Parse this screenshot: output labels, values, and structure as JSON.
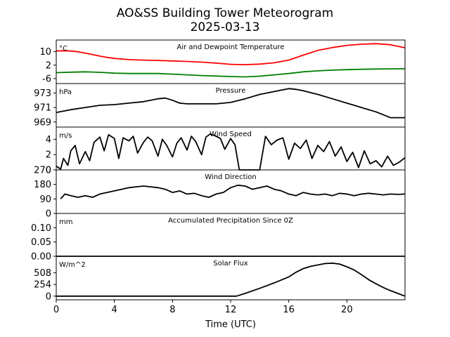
{
  "figure": {
    "title_line1": "AO&SS Building Tower Meteorogram",
    "title_line2": "2025-03-13",
    "xlabel": "Time (UTC)",
    "x_range": [
      0,
      24
    ],
    "x_ticks": [
      0,
      4,
      8,
      12,
      16,
      20
    ]
  },
  "chart_data": [
    {
      "type": "line",
      "title": "Air and Dewpoint Temperature",
      "unit": "°C",
      "ylim": [
        -9,
        17
      ],
      "yticks": [
        -6,
        2,
        10
      ],
      "series": [
        {
          "name": "",
          "color": "#ff0000",
          "x": [
            0,
            0.5,
            1,
            1.5,
            2,
            2.5,
            3,
            3.5,
            4,
            5,
            6,
            7,
            8,
            9,
            10,
            11,
            12,
            13,
            14,
            15,
            16,
            17,
            18,
            19,
            20,
            21,
            22,
            23,
            24
          ],
          "values": [
            10.5,
            10.6,
            10.4,
            10.0,
            9.2,
            8.3,
            7.4,
            6.6,
            6.0,
            5.3,
            5.0,
            4.8,
            4.5,
            4.2,
            3.8,
            3.2,
            2.5,
            2.3,
            2.6,
            3.4,
            5.0,
            8.0,
            10.8,
            12.5,
            13.8,
            14.5,
            14.8,
            14.2,
            12.4
          ]
        },
        {
          "name": "",
          "color": "#008000",
          "x": [
            0,
            1,
            2,
            3,
            4,
            5,
            6,
            7,
            8,
            9,
            10,
            11,
            12,
            13,
            14,
            15,
            16,
            17,
            18,
            19,
            20,
            21,
            22,
            23,
            24
          ],
          "values": [
            -2.5,
            -2.2,
            -2.0,
            -2.3,
            -2.8,
            -3.0,
            -3.0,
            -3.0,
            -3.4,
            -3.8,
            -4.2,
            -4.5,
            -4.8,
            -5.0,
            -4.6,
            -3.8,
            -3.0,
            -2.0,
            -1.4,
            -1.0,
            -0.7,
            -0.5,
            -0.3,
            -0.2,
            -0.2
          ]
        }
      ]
    },
    {
      "type": "line",
      "title": "Pressure",
      "unit": "hPa",
      "ylim": [
        968.3,
        974.3
      ],
      "yticks": [
        969,
        971,
        973
      ],
      "series": [
        {
          "name": "",
          "color": "#000000",
          "x": [
            0,
            1,
            2,
            3,
            4,
            5,
            6,
            7,
            7.5,
            8,
            8.5,
            9,
            10,
            11,
            12,
            13,
            14,
            15,
            16,
            16.5,
            17,
            18,
            19,
            20,
            21,
            22,
            23,
            24
          ],
          "values": [
            970.3,
            970.7,
            971.0,
            971.3,
            971.4,
            971.6,
            971.8,
            972.2,
            972.3,
            972.0,
            971.6,
            971.5,
            971.5,
            971.5,
            971.7,
            972.2,
            972.8,
            973.2,
            973.6,
            973.5,
            973.3,
            972.8,
            972.2,
            971.6,
            971.0,
            970.4,
            969.6,
            969.6
          ]
        }
      ]
    },
    {
      "type": "line",
      "title": "Wind Speed",
      "unit": "m/s",
      "ylim": [
        0,
        5.6
      ],
      "yticks": [
        0,
        2,
        4
      ],
      "series": [
        {
          "name": "",
          "color": "#000000",
          "x": [
            0,
            0.3,
            0.5,
            0.8,
            1.0,
            1.3,
            1.6,
            2.0,
            2.3,
            2.6,
            3.0,
            3.3,
            3.6,
            4.0,
            4.3,
            4.6,
            5.0,
            5.3,
            5.6,
            6.0,
            6.3,
            6.6,
            7.0,
            7.3,
            7.6,
            8.0,
            8.3,
            8.6,
            9.0,
            9.3,
            9.6,
            10.0,
            10.3,
            10.6,
            11.0,
            11.3,
            11.6,
            12.0,
            12.3,
            12.6,
            13.0,
            13.3,
            13.6,
            14.0,
            14.4,
            14.8,
            15.2,
            15.6,
            16.0,
            16.4,
            16.8,
            17.2,
            17.6,
            18.0,
            18.4,
            18.8,
            19.2,
            19.6,
            20.0,
            20.4,
            20.8,
            21.2,
            21.6,
            22.0,
            22.4,
            22.8,
            23.2,
            23.6,
            24.0
          ],
          "values": [
            0.5,
            0.1,
            1.5,
            0.6,
            2.5,
            3.2,
            0.8,
            2.4,
            1.2,
            3.6,
            4.3,
            2.5,
            4.6,
            4.1,
            1.5,
            4.2,
            3.8,
            4.4,
            2.2,
            3.6,
            4.3,
            3.8,
            1.8,
            4.0,
            3.2,
            1.7,
            3.5,
            4.2,
            2.6,
            4.4,
            3.7,
            2.0,
            4.3,
            4.7,
            4.4,
            4.1,
            2.7,
            4.1,
            3.3,
            0.0,
            0.0,
            0.0,
            0.0,
            0.0,
            4.4,
            3.3,
            3.9,
            4.2,
            1.4,
            3.5,
            2.8,
            3.9,
            1.5,
            3.2,
            2.4,
            3.7,
            1.8,
            3.0,
            1.1,
            2.3,
            0.3,
            2.5,
            0.8,
            1.2,
            0.4,
            1.8,
            0.6,
            1.0,
            1.6
          ]
        }
      ]
    },
    {
      "type": "line",
      "title": "Wind Direction",
      "unit": "",
      "ylim": [
        0,
        270
      ],
      "yticks": [
        0,
        90,
        180,
        270
      ],
      "series": [
        {
          "name": "",
          "color": "#000000",
          "x": [
            0.3,
            0.6,
            1,
            1.5,
            2,
            2.5,
            3,
            3.5,
            4,
            4.5,
            5,
            5.5,
            6,
            6.5,
            7,
            7.5,
            8,
            8.5,
            9,
            9.5,
            10,
            10.5,
            11,
            11.5,
            12,
            12.5,
            13,
            13.5,
            14,
            14.5,
            15,
            15.5,
            16,
            16.5,
            17,
            17.5,
            18,
            18.5,
            19,
            19.5,
            20,
            20.5,
            21,
            21.5,
            22,
            22.5,
            23,
            23.5,
            24
          ],
          "values": [
            90,
            120,
            110,
            100,
            110,
            100,
            120,
            130,
            140,
            150,
            160,
            165,
            170,
            165,
            160,
            150,
            130,
            140,
            120,
            125,
            110,
            100,
            120,
            130,
            160,
            175,
            170,
            150,
            160,
            170,
            150,
            140,
            120,
            110,
            130,
            120,
            115,
            120,
            110,
            125,
            120,
            110,
            120,
            125,
            120,
            115,
            120,
            118,
            120
          ]
        }
      ]
    },
    {
      "type": "line",
      "title": "Accumulated Precipitation Since 0Z",
      "unit": "mm",
      "ylim": [
        0,
        0.15
      ],
      "yticks": [
        0.0,
        0.05,
        0.1
      ],
      "ytick_labels": [
        "0.00",
        "0.05",
        "0.10"
      ],
      "series": [
        {
          "name": "",
          "color": "#000000",
          "x": [
            0,
            24
          ],
          "values": [
            0,
            0
          ]
        }
      ]
    },
    {
      "type": "line",
      "title": "Solar Flux",
      "unit": "W/m^2",
      "ylim": [
        -80,
        870
      ],
      "yticks": [
        0,
        254,
        508
      ],
      "series": [
        {
          "name": "",
          "color": "#000000",
          "x": [
            0,
            12.4,
            13,
            14,
            15,
            16,
            16.5,
            17,
            17.5,
            18,
            18.5,
            19,
            19.5,
            20,
            20.5,
            21,
            21.5,
            22,
            22.5,
            23,
            23.5,
            24
          ],
          "values": [
            0,
            0,
            60,
            170,
            290,
            420,
            520,
            600,
            650,
            680,
            710,
            720,
            700,
            640,
            570,
            470,
            360,
            270,
            190,
            120,
            60,
            0
          ]
        }
      ]
    }
  ]
}
